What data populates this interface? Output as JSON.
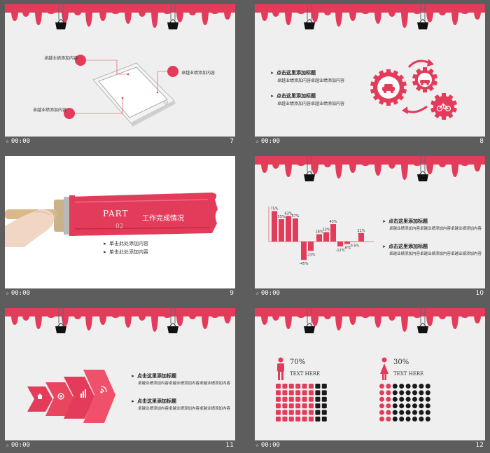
{
  "colors": {
    "accent": "#e33b5a",
    "dark": "#1a1a1a",
    "grey_bg": "#efefef",
    "frame": "#5d5d5d"
  },
  "slides": [
    {
      "num": "7",
      "time": "00:00",
      "texts": [
        "卓越业绩添加内容",
        "卓越业绩添加内容",
        "卓越业绩添加内容"
      ]
    },
    {
      "num": "8",
      "time": "00:00",
      "items": [
        {
          "title": "点击这里添加标题",
          "desc": "卓越业绩添加内容卓越业绩添加内容"
        },
        {
          "title": "点击这里添加标题",
          "desc": "卓越业绩添加内容卓越业绩添加内容"
        }
      ],
      "icons": [
        "car-icon",
        "car-icon",
        "bicycle-icon"
      ]
    },
    {
      "num": "9",
      "time": "00:00",
      "part": "PART",
      "part_num": "02",
      "section": "工作完成情况",
      "bullets": [
        "单击此处添加内容",
        "单击此处添加内容"
      ]
    },
    {
      "num": "10",
      "time": "00:00",
      "items": [
        {
          "title": "点击这里添加标题",
          "desc": "卓越业绩添加内容卓越业绩添加内容卓越业绩添加内容"
        },
        {
          "title": "点击这里添加标题",
          "desc": "卓越业绩添加内容卓越业绩添加内容卓越业绩添加内容"
        }
      ]
    },
    {
      "num": "11",
      "time": "00:00",
      "items": [
        {
          "title": "点击这里添加标题",
          "desc": "卓越业绩添加内容卓越业绩添加内容卓越业绩添加内容"
        },
        {
          "title": "点击这里添加标题",
          "desc": "卓越业绩添加内容卓越业绩添加内容卓越业绩添加内容"
        }
      ],
      "icons": [
        "home-icon",
        "plus-icon",
        "bars-icon",
        "wifi-icon"
      ]
    },
    {
      "num": "12",
      "time": "00:00",
      "stats": [
        {
          "pct": "70%",
          "label": "TEXT HERE",
          "fraction": 0.7,
          "icon": "man-icon"
        },
        {
          "pct": "30%",
          "label": "TEXT HERE",
          "fraction": 0.3,
          "icon": "woman-icon"
        }
      ]
    }
  ],
  "chart_data": {
    "type": "bar",
    "labels": [
      "75%",
      "55%",
      "63%",
      "57%",
      "-45%",
      "-23%",
      "18%",
      "23%",
      "43%",
      "-12%",
      "-6%",
      "-0.5%",
      "21%"
    ],
    "values": [
      75,
      55,
      63,
      57,
      -45,
      -23,
      18,
      23,
      43,
      -12,
      -6,
      -0.5,
      21
    ],
    "ylim": [
      -50,
      80
    ]
  }
}
